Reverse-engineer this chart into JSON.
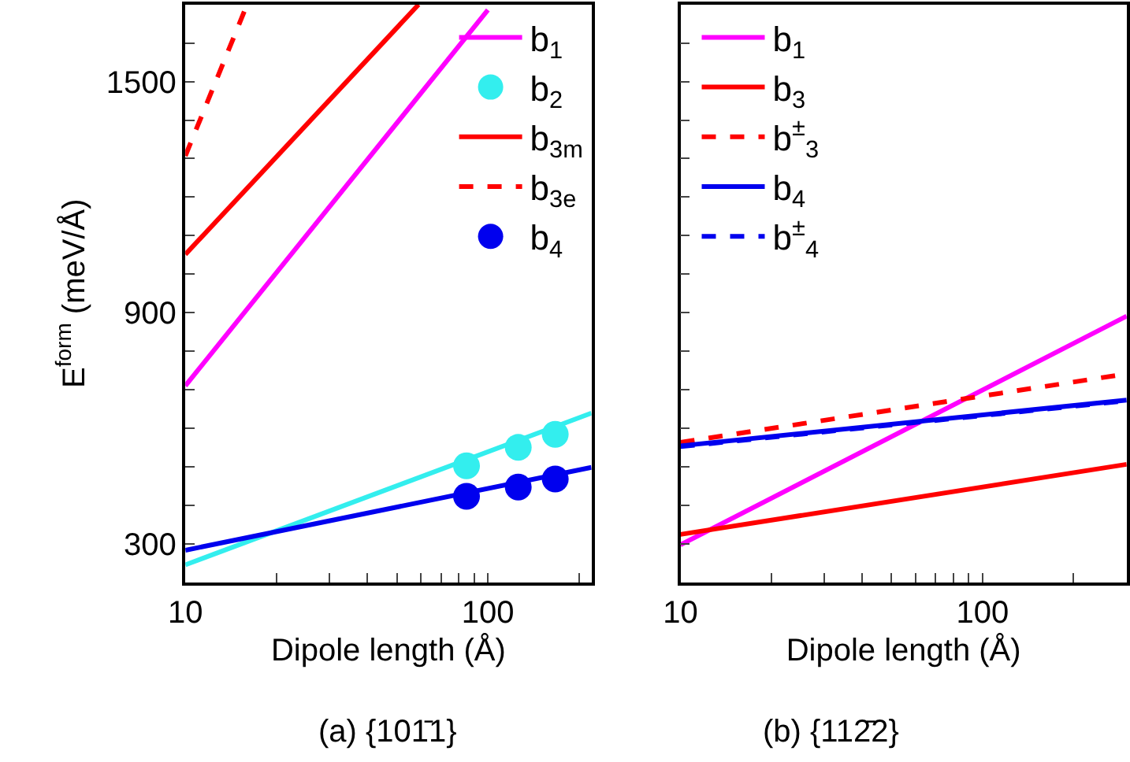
{
  "chart_data": [
    {
      "type": "line",
      "xlabel": "Dipole length (Å)",
      "ylabel": "E$^{form}$ (meV/Å)",
      "annotations": [
        "(a) {101̄1}"
      ],
      "log": "x",
      "legend": "top right",
      "xlim": [
        10,
        220
      ],
      "ylim": [
        200,
        1700
      ],
      "xticks": [
        10,
        {
          "value": 20,
          "label": null
        },
        {
          "value": 30,
          "label": null
        },
        {
          "value": 40,
          "label": null
        },
        {
          "value": 50,
          "label": null
        },
        {
          "value": 60,
          "label": null
        },
        {
          "value": 70,
          "label": null
        },
        {
          "value": 80,
          "label": null
        },
        {
          "value": 90,
          "label": null
        },
        100,
        {
          "value": 200,
          "label": null
        }
      ],
      "yticks": [
        300,
        {
          "value": 400,
          "label": null
        },
        {
          "value": 500,
          "label": null
        },
        {
          "value": 600,
          "label": null
        },
        {
          "value": 700,
          "label": null
        },
        {
          "value": 800,
          "label": null
        },
        900,
        {
          "value": 1000,
          "label": null
        },
        {
          "value": 1100,
          "label": null
        },
        {
          "value": 1200,
          "label": null
        },
        {
          "value": 1300,
          "label": null
        },
        {
          "value": 1400,
          "label": null
        },
        1500,
        {
          "value": 1600,
          "label": null
        }
      ],
      "series": [
        {
          "name": "b$_{1}$",
          "color": "#ff00ff",
          "x": [
            10,
            100
          ],
          "values": [
            710,
            1686
          ]
        },
        {
          "color": "#33eeee",
          "x": [
            10,
            220
          ],
          "values": [
            245,
            639
          ]
        },
        {
          "name": "b$_{2}$",
          "color": "#33eeee",
          "type": "scatter",
          "marker": "circle",
          "x": [
            85,
            126,
            167
          ],
          "values": [
            502,
            550,
            584
          ]
        },
        {
          "name": "b$_{3m}$",
          "color": "#ff0000",
          "x": [
            10,
            59
          ],
          "values": [
            1051,
            1700
          ]
        },
        {
          "name": "b$_{3e}$",
          "color": "#ff0000",
          "line_style": "dashed",
          "x": [
            10,
            16
          ],
          "values": [
            1307,
            1700
          ]
        },
        {
          "color": "#0000ee",
          "x": [
            10,
            220
          ],
          "values": [
            283,
            498
          ]
        },
        {
          "name": "b$_{4}$",
          "color": "#0000ee",
          "type": "scatter",
          "marker": "circle",
          "x": [
            85,
            126,
            167
          ],
          "values": [
            423,
            447,
            468
          ]
        }
      ]
    },
    {
      "type": "line",
      "xlabel": "Dipole length (Å)",
      "annotations": [
        "(b) {112̄2}"
      ],
      "log": "x",
      "legend": "top left",
      "tick_labels": "x",
      "xlim": [
        10,
        300
      ],
      "ylim": [
        200,
        1700
      ],
      "xticks": [
        10,
        {
          "value": 20,
          "label": null
        },
        {
          "value": 30,
          "label": null
        },
        {
          "value": 40,
          "label": null
        },
        {
          "value": 50,
          "label": null
        },
        {
          "value": 60,
          "label": null
        },
        {
          "value": 70,
          "label": null
        },
        {
          "value": 80,
          "label": null
        },
        {
          "value": 90,
          "label": null
        },
        100,
        {
          "value": 200,
          "label": null
        }
      ],
      "yticks": [
        {
          "value": 300,
          "label": null
        },
        {
          "value": 400,
          "label": null
        },
        {
          "value": 500,
          "label": null
        },
        {
          "value": 600,
          "label": null
        },
        {
          "value": 700,
          "label": null
        },
        {
          "value": 800,
          "label": null
        },
        {
          "value": 900,
          "label": null
        },
        {
          "value": 1000,
          "label": null
        },
        {
          "value": 1100,
          "label": null
        },
        {
          "value": 1200,
          "label": null
        },
        {
          "value": 1300,
          "label": null
        },
        {
          "value": 1400,
          "label": null
        },
        {
          "value": 1500,
          "label": null
        },
        {
          "value": 1600,
          "label": null
        }
      ],
      "series": [
        {
          "name": "b$_{1}$",
          "color": "#ff00ff",
          "x": [
            10,
            300
          ],
          "values": [
            297,
            891
          ]
        },
        {
          "name": "b$_{3}$",
          "color": "#ff0000",
          "x": [
            10,
            300
          ],
          "values": [
            324,
            506
          ]
        },
        {
          "name": "b$^{±}$$_{3}$",
          "color": "#ff0000",
          "line_style": "dashed",
          "x": [
            10,
            300
          ],
          "values": [
            563,
            741
          ]
        },
        {
          "name": "b$_{4}$",
          "color": "#0000ee",
          "x": [
            10,
            300
          ],
          "values": [
            554,
            673
          ]
        },
        {
          "name": "b$^{±}$$_{4}$",
          "color": "#0000ee",
          "line_style": "dashed",
          "x": [
            10,
            300
          ],
          "values": [
            552,
            671
          ]
        }
      ]
    }
  ]
}
